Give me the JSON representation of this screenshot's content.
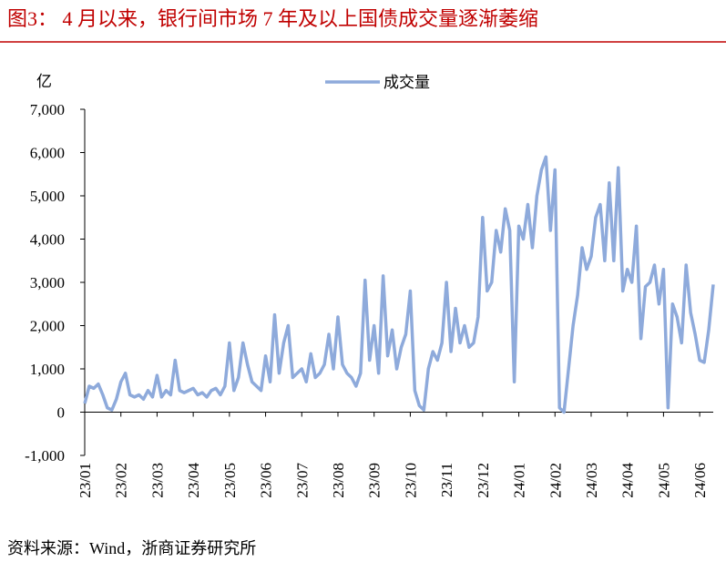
{
  "chart_data": {
    "type": "line",
    "title": "图3： 4 月以来，银行间市场 7 年及以上国债成交量逐渐萎缩",
    "y_label": "亿",
    "source": "资料来源：Wind，浙商证券研究所",
    "categories": [
      "23/01",
      null,
      null,
      null,
      null,
      null,
      null,
      null,
      "23/02",
      null,
      null,
      null,
      null,
      null,
      null,
      null,
      "23/03",
      null,
      null,
      null,
      null,
      null,
      null,
      null,
      "23/04",
      null,
      null,
      null,
      null,
      null,
      null,
      null,
      "23/05",
      null,
      null,
      null,
      null,
      null,
      null,
      null,
      "23/06",
      null,
      null,
      null,
      null,
      null,
      null,
      null,
      "23/07",
      null,
      null,
      null,
      null,
      null,
      null,
      null,
      "23/08",
      null,
      null,
      null,
      null,
      null,
      null,
      null,
      "23/09",
      null,
      null,
      null,
      null,
      null,
      null,
      null,
      "23/10",
      null,
      null,
      null,
      null,
      null,
      null,
      null,
      "23/11",
      null,
      null,
      null,
      null,
      null,
      null,
      null,
      "23/12",
      null,
      null,
      null,
      null,
      null,
      null,
      null,
      "24/01",
      null,
      null,
      null,
      null,
      null,
      null,
      null,
      "24/02",
      null,
      null,
      null,
      null,
      null,
      null,
      null,
      "24/03",
      null,
      null,
      null,
      null,
      null,
      null,
      null,
      "24/04",
      null,
      null,
      null,
      null,
      null,
      null,
      null,
      "24/05",
      null,
      null,
      null,
      null,
      null,
      null,
      null,
      "24/06",
      null,
      null,
      null
    ],
    "series": [
      {
        "name": "成交量",
        "color": "#8eaadb",
        "values": [
          200,
          600,
          550,
          650,
          400,
          100,
          50,
          300,
          700,
          900,
          400,
          350,
          400,
          300,
          500,
          350,
          850,
          350,
          500,
          400,
          1200,
          500,
          450,
          500,
          550,
          400,
          450,
          350,
          500,
          550,
          400,
          600,
          1600,
          500,
          800,
          1600,
          1100,
          700,
          600,
          500,
          1300,
          700,
          2250,
          900,
          1600,
          2000,
          800,
          900,
          1000,
          700,
          1350,
          800,
          900,
          1100,
          1800,
          1000,
          2200,
          1100,
          900,
          800,
          600,
          900,
          3050,
          1200,
          2000,
          900,
          3150,
          1300,
          1900,
          1000,
          1500,
          1800,
          2800,
          500,
          150,
          50,
          1000,
          1400,
          1200,
          1600,
          3000,
          1400,
          2400,
          1600,
          2000,
          1500,
          1600,
          2200,
          4500,
          2800,
          3000,
          4200,
          3700,
          4700,
          4200,
          700,
          4300,
          4000,
          4800,
          3800,
          5000,
          5600,
          5900,
          4200,
          5600,
          100,
          0,
          1000,
          2000,
          2700,
          3800,
          3300,
          3600,
          4500,
          4800,
          3500,
          5300,
          3500,
          5650,
          2800,
          3300,
          3000,
          4300,
          1700,
          2900,
          3000,
          3400,
          2500,
          3300,
          100,
          2500,
          2200,
          1600,
          3400,
          2300,
          1800,
          1200,
          1150,
          1900,
          2950
        ]
      }
    ],
    "ylim": [
      -1000,
      7000
    ],
    "yticks": [
      {
        "value": -1000,
        "label": "-1,000"
      },
      0,
      {
        "value": 1000,
        "label": "1,000"
      },
      {
        "value": 2000,
        "label": "2,000"
      },
      {
        "value": 3000,
        "label": "3,000"
      },
      {
        "value": 4000,
        "label": "4,000"
      },
      {
        "value": 5000,
        "label": "5,000"
      },
      {
        "value": 6000,
        "label": "6,000"
      },
      {
        "value": 7000,
        "label": "7,000"
      }
    ],
    "legend": "top"
  }
}
